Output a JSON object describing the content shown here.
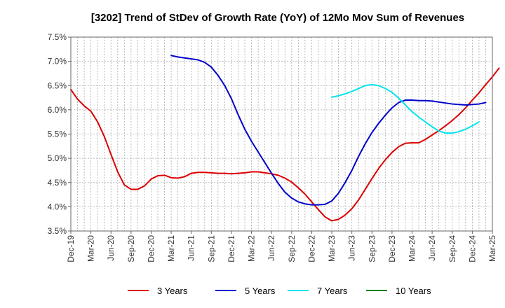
{
  "chart_data": {
    "type": "line",
    "title": "[3202]  Trend of StDev of Growth Rate (YoY) of 12Mo Mov Sum of Revenues",
    "xlabel": "",
    "ylabel": "",
    "ylim": [
      3.5,
      7.5
    ],
    "ytick_values": [
      3.5,
      4.0,
      4.5,
      5.0,
      5.5,
      6.0,
      6.5,
      7.0,
      7.5
    ],
    "ytick_labels": [
      "3.5%",
      "4.0%",
      "4.5%",
      "5.0%",
      "5.5%",
      "6.0%",
      "6.5%",
      "7.0%",
      "7.5%"
    ],
    "x_start": "Dec-19",
    "x_labels": [
      "Dec-19",
      "Mar-20",
      "Jun-20",
      "Sep-20",
      "Dec-20",
      "Mar-21",
      "Jun-21",
      "Sep-21",
      "Dec-21",
      "Mar-22",
      "Jun-22",
      "Sep-22",
      "Dec-22",
      "Mar-23",
      "Jun-23",
      "Sep-23",
      "Dec-23",
      "Mar-24",
      "Jun-24",
      "Sep-24",
      "Dec-24",
      "Mar-25"
    ],
    "grid": true,
    "legend_position": "bottom",
    "series": [
      {
        "name": "3 Years",
        "color": "#dd0000",
        "start_index": 0,
        "values": [
          6.42,
          6.22,
          6.08,
          5.97,
          5.75,
          5.45,
          5.08,
          4.72,
          4.45,
          4.36,
          4.36,
          4.43,
          4.57,
          4.64,
          4.65,
          4.6,
          4.59,
          4.62,
          4.69,
          4.71,
          4.71,
          4.7,
          4.69,
          4.69,
          4.68,
          4.69,
          4.7,
          4.72,
          4.72,
          4.7,
          4.68,
          4.65,
          4.59,
          4.51,
          4.39,
          4.26,
          4.1,
          3.94,
          3.79,
          3.71,
          3.74,
          3.83,
          3.96,
          4.14,
          4.36,
          4.58,
          4.79,
          4.97,
          5.12,
          5.24,
          5.31,
          5.32,
          5.32,
          5.39,
          5.48,
          5.57,
          5.67,
          5.78,
          5.9,
          6.04,
          6.2,
          6.35,
          6.52,
          6.68,
          6.86
        ]
      },
      {
        "name": "5 Years",
        "color": "#0000cc",
        "start_index": 15,
        "values": [
          7.12,
          7.09,
          7.07,
          7.05,
          7.03,
          6.98,
          6.88,
          6.71,
          6.5,
          6.23,
          5.9,
          5.6,
          5.35,
          5.13,
          4.91,
          4.69,
          4.48,
          4.3,
          4.18,
          4.1,
          4.06,
          4.04,
          4.04,
          4.05,
          4.12,
          4.28,
          4.5,
          4.75,
          5.04,
          5.3,
          5.53,
          5.72,
          5.89,
          6.04,
          6.15,
          6.2,
          6.2,
          6.19,
          6.19,
          6.18,
          6.16,
          6.14,
          6.12,
          6.11,
          6.1,
          6.11,
          6.12,
          6.15
        ]
      },
      {
        "name": "7 Years",
        "color": "#00e5ee",
        "start_index": 39,
        "values": [
          6.26,
          6.29,
          6.33,
          6.38,
          6.44,
          6.5,
          6.52,
          6.5,
          6.44,
          6.36,
          6.24,
          6.1,
          5.96,
          5.85,
          5.75,
          5.65,
          5.56,
          5.52,
          5.52,
          5.55,
          5.6,
          5.67,
          5.75
        ]
      },
      {
        "name": "10 Years",
        "color": "#008000",
        "start_index": 0,
        "values": []
      }
    ]
  }
}
